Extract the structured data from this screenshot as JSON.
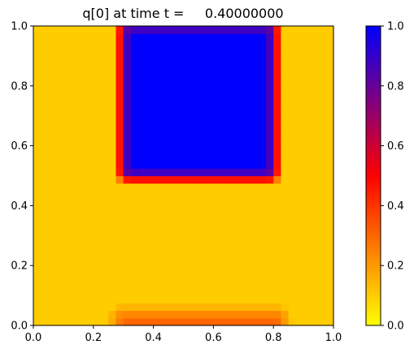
{
  "chart_data": {
    "type": "heatmap",
    "title": "q[0] at time t =     0.40000000",
    "xlabel": "",
    "ylabel": "",
    "xlim": [
      0,
      1
    ],
    "ylim": [
      0,
      1
    ],
    "x_ticks": [
      "0.0",
      "0.2",
      "0.4",
      "0.6",
      "0.8",
      "1.0"
    ],
    "y_ticks": [
      "0.0",
      "0.2",
      "0.4",
      "0.6",
      "0.8",
      "1.0"
    ],
    "grid": false,
    "colorbar": {
      "range": [
        0,
        1
      ],
      "ticks": [
        "0.0",
        "0.2",
        "0.4",
        "0.6",
        "0.8",
        "1.0"
      ],
      "colormap": [
        {
          "value": 0.0,
          "color": "#ffff00"
        },
        {
          "value": 0.1,
          "color": "#ffcc00"
        },
        {
          "value": 0.3,
          "color": "#ff6600"
        },
        {
          "value": 0.5,
          "color": "#ff0000"
        },
        {
          "value": 0.75,
          "color": "#800080"
        },
        {
          "value": 1.0,
          "color": "#0000ff"
        }
      ]
    },
    "field": {
      "grid_size": [
        40,
        40
      ],
      "background_value": 0.1,
      "regions": [
        {
          "label": "main square",
          "x": [
            0.32,
            0.78
          ],
          "y": [
            0.52,
            0.98
          ],
          "value": 1.0
        },
        {
          "label": "bottom band",
          "x": [
            0.3,
            0.81
          ],
          "y": [
            0.0,
            0.02
          ],
          "value": 0.3
        }
      ]
    }
  }
}
